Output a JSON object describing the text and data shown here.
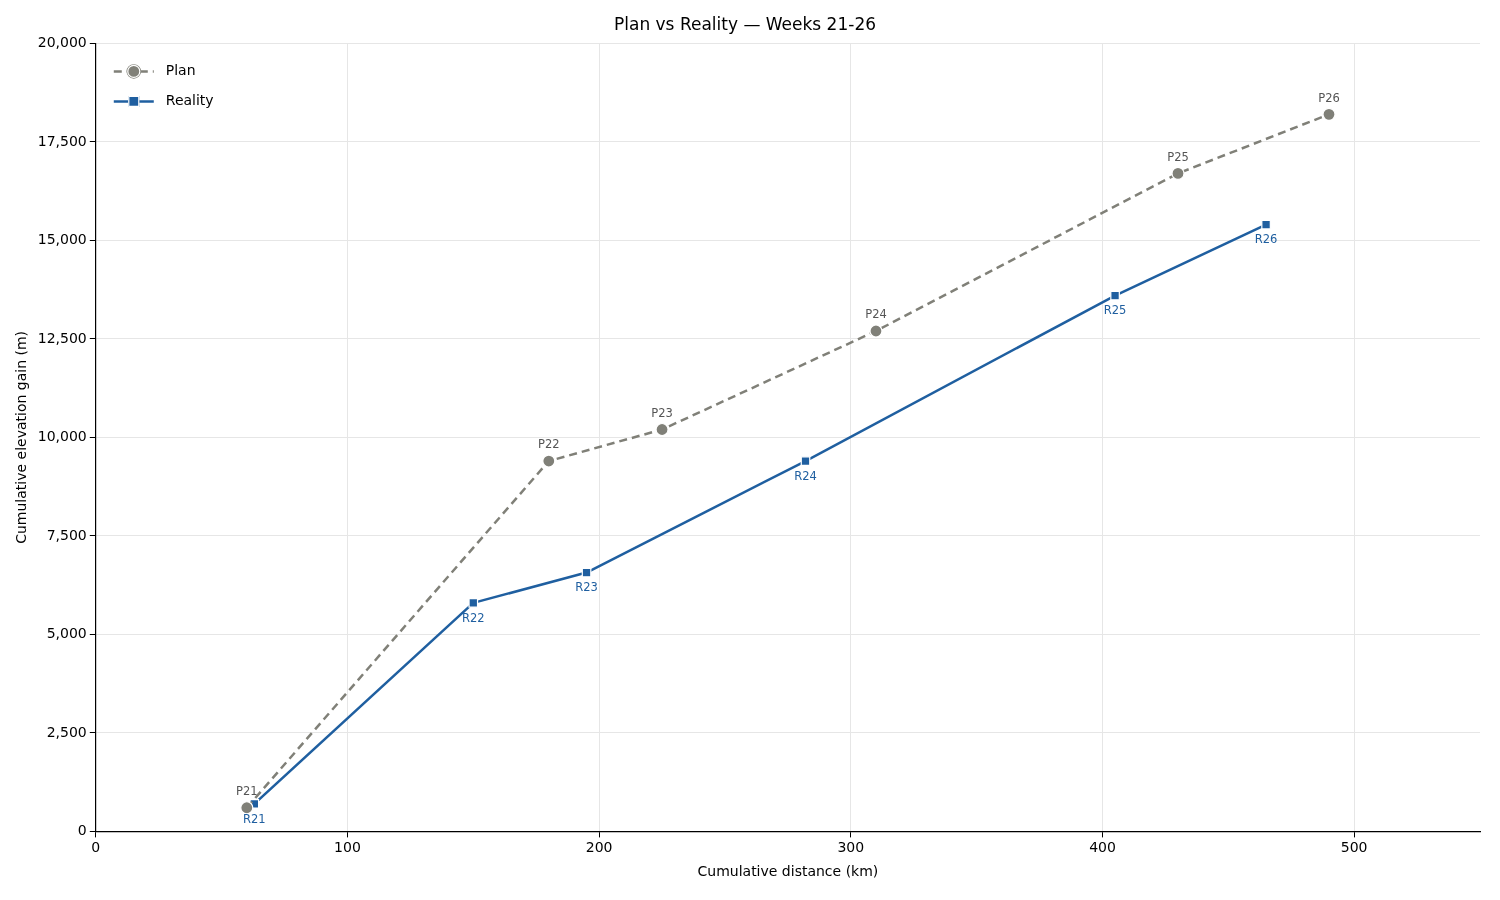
{
  "chart_data": {
    "type": "line",
    "title": "Plan vs Reality — Weeks 21-26",
    "xlabel": "Cumulative distance (km)",
    "ylabel": "Cumulative elevation gain (m)",
    "xlim": [
      0,
      550
    ],
    "xticks": [
      0,
      100,
      200,
      300,
      400,
      500
    ],
    "ylim": [
      0,
      20000
    ],
    "yticks": [
      0,
      {
        "value": 2500,
        "label": "2,500"
      },
      {
        "value": 5000,
        "label": "5,000"
      },
      {
        "value": 7500,
        "label": "7,500"
      },
      {
        "value": 10000,
        "label": "10,000"
      },
      {
        "value": 12500,
        "label": "12,500"
      },
      {
        "value": 15000,
        "label": "15,000"
      },
      {
        "value": 17500,
        "label": "17,500"
      },
      {
        "value": 20000,
        "label": "20,000"
      }
    ],
    "grid": true,
    "legend": "top left",
    "series": [
      {
        "name": "Plan",
        "color": "#808078",
        "marker": "circle",
        "line_style": "dashed",
        "x": [
          60,
          180,
          225,
          310,
          430,
          490
        ],
        "values": [
          600,
          9400,
          10200,
          12700,
          16700,
          18200
        ],
        "value_labels": [
          "P21",
          "P22",
          "P23",
          "P24",
          "P25",
          "P26"
        ]
      },
      {
        "name": "Reality",
        "color": "#1f5fa0",
        "marker": "square",
        "line_style": "solid",
        "x": [
          63,
          150,
          195,
          282,
          405,
          465
        ],
        "values": [
          700,
          5800,
          6570,
          9400,
          13600,
          15400
        ],
        "value_labels": [
          "R21",
          "R22",
          "R23",
          "R24",
          "R25",
          "R26"
        ]
      }
    ]
  }
}
